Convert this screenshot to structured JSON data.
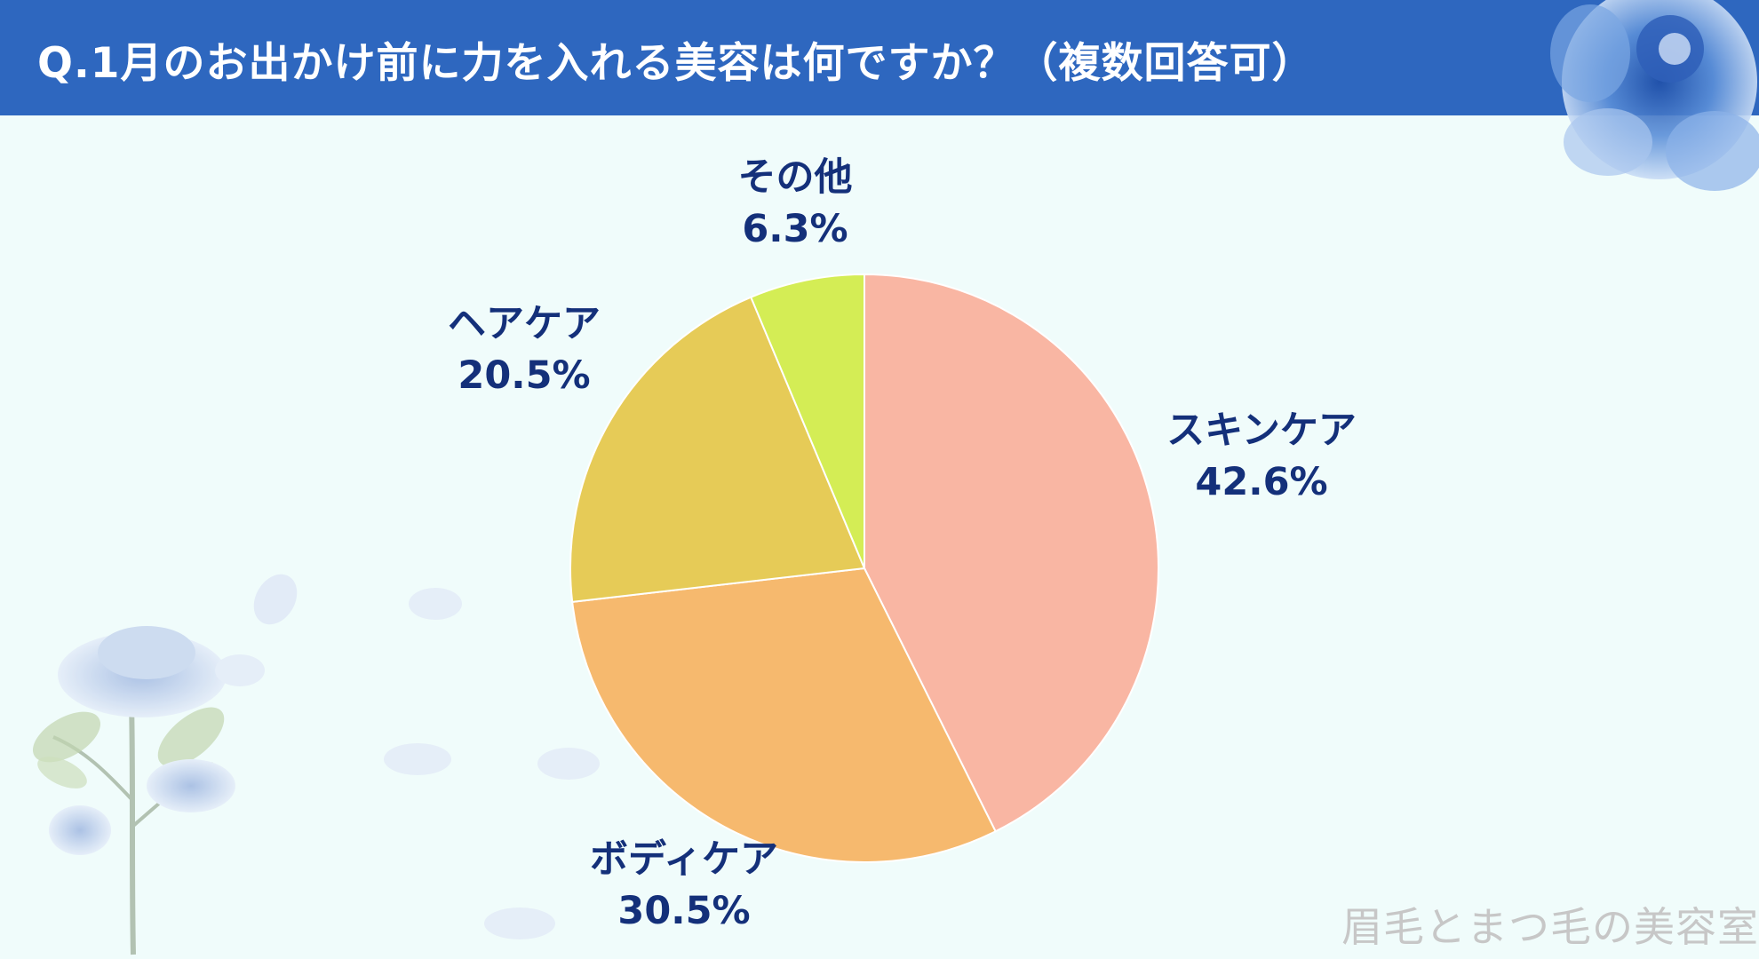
{
  "title": "Q.1月のお出かけ前に力を入れる美容は何ですか？（複数回答可）",
  "watermark": "眉毛とまつ毛の美容室",
  "colors": {
    "header": "#2e67bf",
    "background": "#f0fcfb",
    "label_text": "#14307a"
  },
  "chart_data": {
    "type": "pie",
    "title": "",
    "slices": [
      {
        "label": "スキンケア",
        "value": 42.6,
        "value_label": "42.6%",
        "color": "#f9b6a3"
      },
      {
        "label": "ボディケア",
        "value": 30.5,
        "value_label": "30.5%",
        "color": "#f6b96e"
      },
      {
        "label": "ヘアケア",
        "value": 20.5,
        "value_label": "20.5%",
        "color": "#e6cb57"
      },
      {
        "label": "その他",
        "value": 6.3,
        "value_label": "6.3%",
        "color": "#d4ed55"
      }
    ]
  }
}
